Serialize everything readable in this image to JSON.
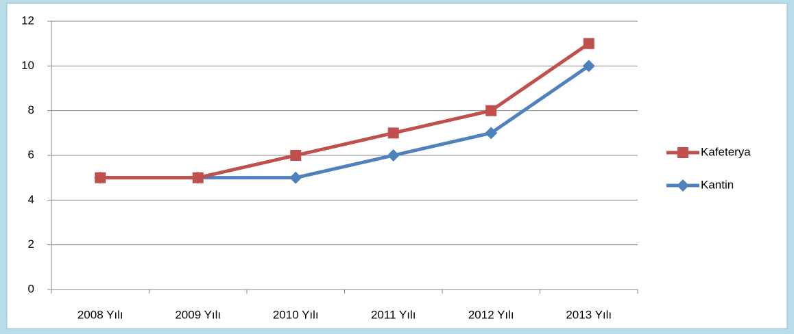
{
  "chart_data": {
    "type": "line",
    "categories": [
      "2008 Yılı",
      "2009 Yılı",
      "2010 Yılı",
      "2011 Yılı",
      "2012 Yılı",
      "2013 Yılı"
    ],
    "series": [
      {
        "name": "Kafeterya",
        "color": "#c0504d",
        "marker": "square",
        "values": [
          5,
          5,
          6,
          7,
          8,
          11
        ]
      },
      {
        "name": "Kantin",
        "color": "#4f81bd",
        "marker": "diamond",
        "values": [
          5,
          5,
          5,
          6,
          7,
          10
        ]
      }
    ],
    "ylim": [
      0,
      12
    ],
    "yticks": [
      0,
      2,
      4,
      6,
      8,
      10,
      12
    ],
    "grid": true,
    "legend": "right"
  }
}
